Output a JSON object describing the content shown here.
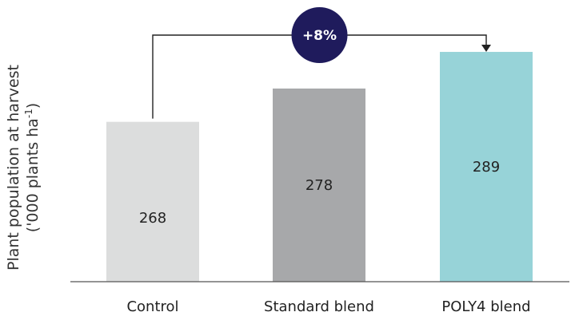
{
  "chart_data": {
    "type": "bar",
    "categories": [
      "Control",
      "Standard blend",
      "POLY4 blend"
    ],
    "values": [
      268,
      278,
      289
    ],
    "data_labels": [
      "268",
      "278",
      "289"
    ],
    "ylabel_line1": "Plant population at harvest",
    "ylabel_line2_pre": "('000 plants  ha",
    "ylabel_line2_sup": "-1",
    "ylabel_line2_post": ")",
    "xlabel": "",
    "title": "",
    "grid": false,
    "legend": "none",
    "ylim": [
      220,
      295
    ],
    "colors": [
      "#dcdddd",
      "#a7a8aa",
      "#97d3d8"
    ],
    "annotation": {
      "text": "+8%",
      "from": "Control",
      "to": "POLY4 blend",
      "badge_color": "#1f1b5c"
    }
  }
}
